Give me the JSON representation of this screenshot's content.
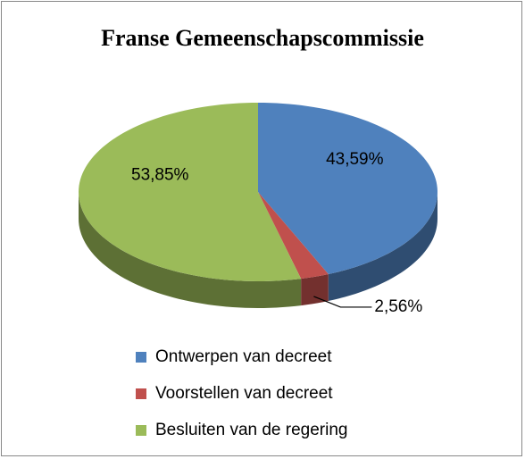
{
  "chart_data": {
    "type": "pie",
    "title": "Franse Gemeenschapscommissie",
    "categories": [
      "Ontwerpen van decreet",
      "Voorstellen van decreet",
      "Besluiten van de regering"
    ],
    "values": [
      43.59,
      2.56,
      53.85
    ],
    "value_labels": [
      "43,59%",
      "2,56%",
      "53,85%"
    ],
    "colors": [
      "#4f81bd",
      "#c0504d",
      "#9bbb59"
    ],
    "legend": "bottom"
  }
}
